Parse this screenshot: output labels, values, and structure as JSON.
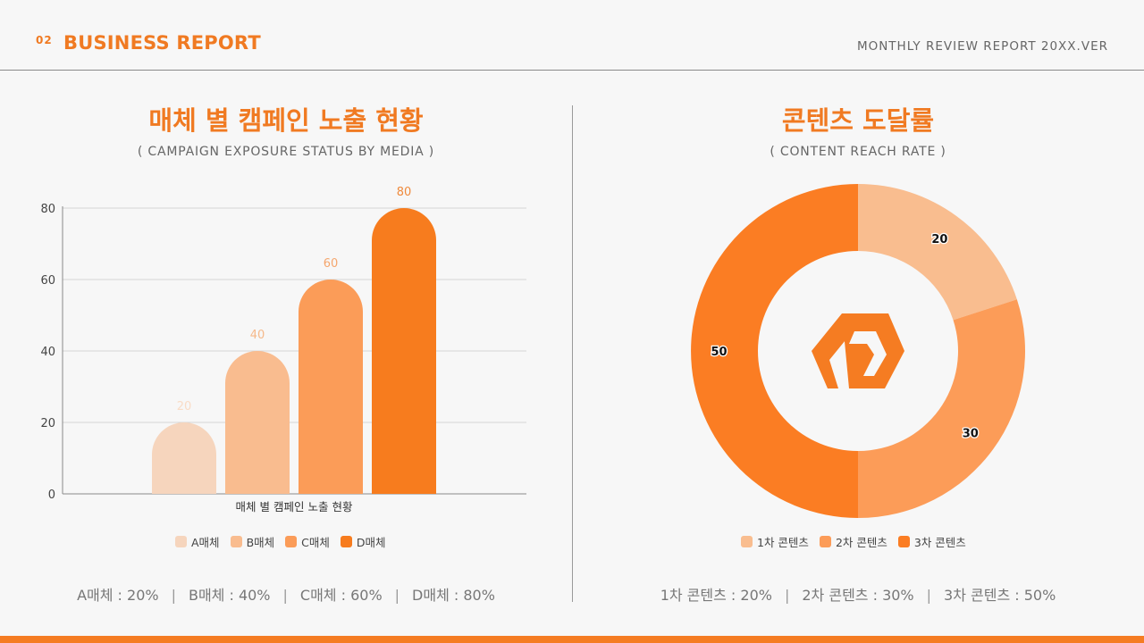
{
  "header": {
    "number": "02",
    "title": "BUSINESS REPORT",
    "subtitle": "MONTHLY REVIEW REPORT 20XX.VER"
  },
  "left_panel": {
    "title": "매체 별 캠페인 노출 현황",
    "subtitle": "( CAMPAIGN EXPOSURE STATUS BY MEDIA )",
    "summary": [
      "A매체 : 20%",
      "B매체 : 40%",
      "C매체 : 60%",
      "D매체 : 80%"
    ]
  },
  "right_panel": {
    "title": "콘텐츠 도달률",
    "subtitle": "( CONTENT REACH RATE )",
    "summary": [
      "1차 콘텐츠 : 20%",
      "2차 콘텐츠 : 30%",
      "3차 콘텐츠 : 50%"
    ]
  },
  "chart_data": [
    {
      "type": "bar",
      "title": "매체 별 캠페인 노출 현황",
      "xlabel": "매체 별 캠페인 노출 현황",
      "ylabel": "",
      "ylim": [
        0,
        80
      ],
      "yticks": [
        0,
        20,
        40,
        60,
        80
      ],
      "grid": true,
      "legend_position": "bottom",
      "series": [
        {
          "name": "A매체",
          "values": [
            20
          ],
          "color": "#f6d5bd",
          "label_color": "#f9dcc6"
        },
        {
          "name": "B매체",
          "values": [
            40
          ],
          "color": "#f9bc8f",
          "label_color": "#f5b98a"
        },
        {
          "name": "C매체",
          "values": [
            60
          ],
          "color": "#fb9c58",
          "label_color": "#f5a66d"
        },
        {
          "name": "D매체",
          "values": [
            80
          ],
          "color": "#f77c1e",
          "label_color": "#ef8a3c"
        }
      ]
    },
    {
      "type": "pie",
      "donut": true,
      "legend_position": "bottom",
      "slices": [
        {
          "label": "1차 콘텐츠",
          "value": 20,
          "color": "#f9bd8f"
        },
        {
          "label": "2차 콘텐츠",
          "value": 30,
          "color": "#fc9c58"
        },
        {
          "label": "3차 콘텐츠",
          "value": 50,
          "color": "#fb7d23"
        }
      ],
      "center_icon": "brand-logo-icon"
    }
  ]
}
